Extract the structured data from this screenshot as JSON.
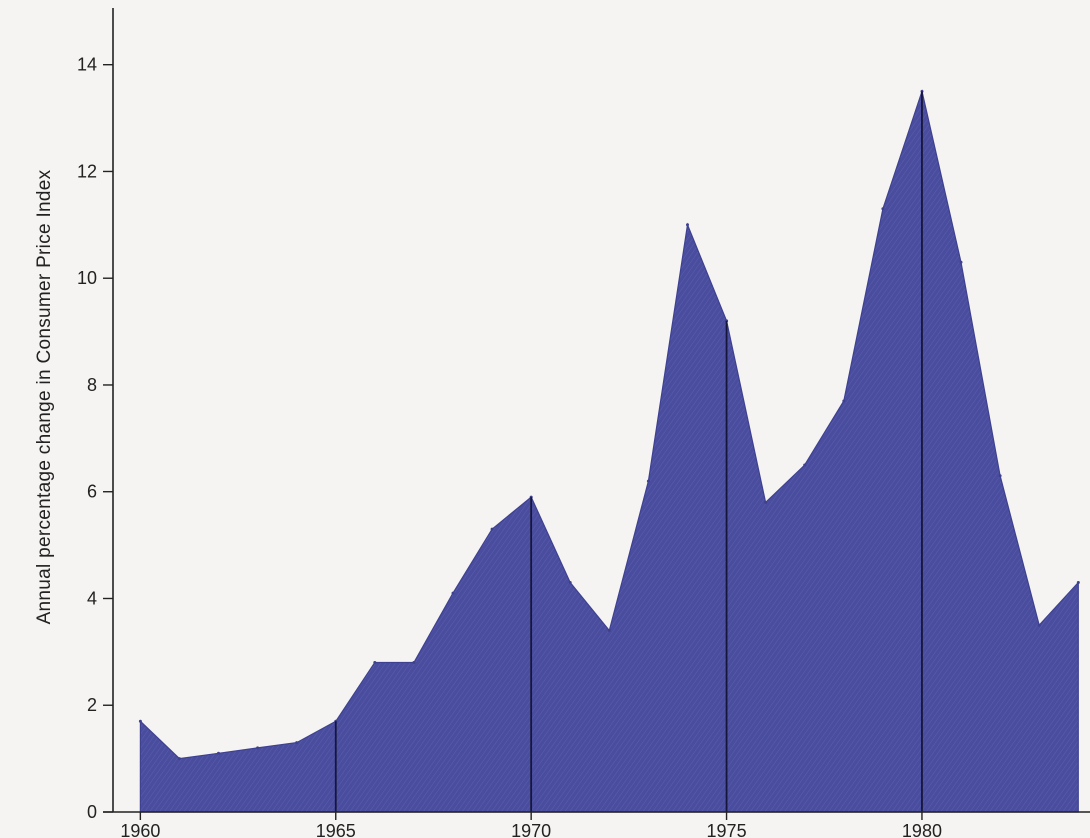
{
  "chart_data": {
    "type": "area",
    "title": "",
    "xlabel": "",
    "ylabel": "Annual percentage change in Consumer Price Index",
    "x": [
      1960,
      1961,
      1962,
      1963,
      1964,
      1965,
      1966,
      1967,
      1968,
      1969,
      1970,
      1971,
      1972,
      1973,
      1974,
      1975,
      1976,
      1977,
      1978,
      1979,
      1980,
      1981,
      1982,
      1983,
      1984
    ],
    "series": [
      {
        "values": [
          1.7,
          1.0,
          1.1,
          1.2,
          1.3,
          1.7,
          2.8,
          2.8,
          4.1,
          5.3,
          5.9,
          4.3,
          3.4,
          6.2,
          11.0,
          9.2,
          5.8,
          6.5,
          7.7,
          11.3,
          13.5,
          10.3,
          6.3,
          3.5,
          4.3
        ],
        "color": "#4a4d9e"
      }
    ],
    "xlim": [
      1959.3,
      1984.3
    ],
    "ylim": [
      0,
      14.8
    ],
    "x_ticks": [
      "1960",
      "1965",
      "1970",
      "1975",
      "1980"
    ],
    "y_ticks": [
      "0",
      "2",
      "4",
      "6",
      "8",
      "10",
      "12",
      "14"
    ],
    "vertical_lines_at": [
      1965,
      1970,
      1975,
      1980
    ],
    "grid": false,
    "legend": "none"
  }
}
